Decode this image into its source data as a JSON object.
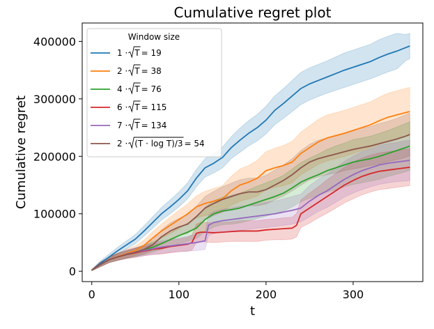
{
  "chart_data": {
    "type": "line",
    "title": "Cumulative regret plot",
    "xlabel": "t",
    "ylabel": "Cumulative regret",
    "xlim": [
      -11,
      380
    ],
    "ylim": [
      -18000,
      432000
    ],
    "xticks": [
      0,
      100,
      200,
      300
    ],
    "yticks": [
      0,
      100000,
      200000,
      300000,
      400000
    ],
    "grid": false,
    "legend": {
      "title": "Window size",
      "placement": "top-left"
    },
    "series": [
      {
        "name": "1·√T = 19",
        "label_parts": [
          "1 · ",
          "T",
          " = 19"
        ],
        "color": "#1f77b4",
        "x": [
          0,
          10,
          20,
          30,
          40,
          50,
          60,
          70,
          80,
          90,
          100,
          110,
          120,
          130,
          140,
          150,
          160,
          170,
          180,
          190,
          200,
          210,
          220,
          230,
          240,
          250,
          260,
          270,
          280,
          290,
          300,
          310,
          320,
          330,
          340,
          350,
          360,
          365
        ],
        "y": [
          2000,
          14000,
          25000,
          36000,
          46000,
          56000,
          70000,
          85000,
          100000,
          112000,
          125000,
          140000,
          162000,
          180000,
          188000,
          198000,
          215000,
          228000,
          240000,
          250000,
          263000,
          280000,
          292000,
          305000,
          318000,
          326000,
          332000,
          338000,
          344000,
          350000,
          355000,
          360000,
          365000,
          372000,
          378000,
          383000,
          389000,
          392000
        ],
        "lower": [
          1000,
          10000,
          20000,
          30000,
          39000,
          48000,
          61000,
          75000,
          89000,
          100000,
          112000,
          126000,
          147000,
          164000,
          171000,
          180000,
          196000,
          207000,
          218000,
          227000,
          239000,
          255000,
          266000,
          278000,
          290000,
          298000,
          304000,
          310000,
          315000,
          320000,
          325000,
          330000,
          335000,
          341000,
          347000,
          352000,
          366000,
          370000
        ],
        "upper": [
          3000,
          18000,
          30000,
          42000,
          53000,
          64000,
          79000,
          95000,
          111000,
          124000,
          138000,
          154000,
          177000,
          196000,
          205000,
          216000,
          234000,
          249000,
          262000,
          273000,
          287000,
          305000,
          318000,
          332000,
          346000,
          354000,
          360000,
          366000,
          373000,
          380000,
          385000,
          390000,
          395000,
          403000,
          409000,
          414000,
          412000,
          414000
        ]
      },
      {
        "name": "2·√T = 38",
        "label_parts": [
          "2 · ",
          "T",
          " = 38"
        ],
        "color": "#ff7f0e",
        "x": [
          0,
          10,
          20,
          30,
          40,
          50,
          60,
          70,
          80,
          90,
          100,
          110,
          120,
          130,
          140,
          150,
          160,
          170,
          180,
          190,
          200,
          210,
          220,
          230,
          240,
          250,
          260,
          270,
          280,
          290,
          300,
          310,
          320,
          330,
          340,
          350,
          360,
          365
        ],
        "y": [
          2000,
          12000,
          20000,
          26000,
          31000,
          36000,
          45000,
          58000,
          70000,
          80000,
          90000,
          100000,
          112000,
          118000,
          122000,
          126000,
          140000,
          150000,
          155000,
          162000,
          175000,
          180000,
          184000,
          190000,
          205000,
          215000,
          225000,
          232000,
          236000,
          240000,
          245000,
          250000,
          255000,
          262000,
          268000,
          272000,
          276000,
          278000
        ],
        "lower": [
          1000,
          8000,
          15000,
          20000,
          24000,
          28000,
          36000,
          47000,
          58000,
          66000,
          74000,
          83000,
          93000,
          97000,
          100000,
          103000,
          115000,
          122000,
          126000,
          131000,
          142000,
          146000,
          149000,
          154000,
          168000,
          177000,
          186000,
          192000,
          196000,
          200000,
          205000,
          210000,
          215000,
          221000,
          226000,
          230000,
          234000,
          236000
        ],
        "upper": [
          3000,
          16000,
          25000,
          32000,
          38000,
          44000,
          54000,
          69000,
          82000,
          94000,
          106000,
          117000,
          131000,
          139000,
          144000,
          149000,
          165000,
          178000,
          184000,
          193000,
          208000,
          214000,
          219000,
          226000,
          242000,
          253000,
          264000,
          272000,
          276000,
          280000,
          285000,
          290000,
          295000,
          303000,
          310000,
          314000,
          318000,
          320000
        ]
      },
      {
        "name": "4·√T = 76",
        "label_parts": [
          "4 · ",
          "T",
          " = 76"
        ],
        "color": "#2ca02c",
        "x": [
          0,
          10,
          20,
          30,
          40,
          50,
          60,
          70,
          80,
          90,
          100,
          110,
          120,
          130,
          140,
          150,
          160,
          170,
          180,
          190,
          200,
          210,
          220,
          230,
          240,
          250,
          260,
          270,
          280,
          290,
          300,
          310,
          320,
          330,
          340,
          350,
          360,
          365
        ],
        "y": [
          2000,
          12000,
          20000,
          25000,
          29000,
          33000,
          37000,
          42000,
          48000,
          55000,
          62000,
          68000,
          75000,
          90000,
          100000,
          105000,
          107000,
          110000,
          115000,
          120000,
          125000,
          130000,
          136000,
          145000,
          155000,
          162000,
          168000,
          175000,
          180000,
          185000,
          190000,
          193000,
          196000,
          200000,
          205000,
          210000,
          215000,
          218000
        ],
        "lower": [
          1000,
          8000,
          15000,
          19000,
          23000,
          26000,
          29000,
          33000,
          38000,
          43000,
          48000,
          52000,
          57000,
          69000,
          77000,
          81000,
          82000,
          84000,
          88000,
          92000,
          96000,
          100000,
          105000,
          112000,
          121000,
          127000,
          132000,
          138000,
          142000,
          147000,
          151000,
          154000,
          157000,
          160000,
          165000,
          169000,
          173000,
          176000
        ],
        "upper": [
          3000,
          16000,
          25000,
          31000,
          35000,
          40000,
          45000,
          51000,
          58000,
          67000,
          76000,
          84000,
          93000,
          111000,
          123000,
          129000,
          132000,
          136000,
          142000,
          148000,
          154000,
          160000,
          167000,
          178000,
          189000,
          197000,
          204000,
          212000,
          218000,
          223000,
          229000,
          232000,
          235000,
          240000,
          245000,
          251000,
          257000,
          260000
        ]
      },
      {
        "name": "6·√T = 115",
        "label_parts": [
          "6 · ",
          "T",
          " = 115"
        ],
        "color": "#d62728",
        "x": [
          0,
          10,
          20,
          30,
          40,
          50,
          60,
          70,
          80,
          90,
          100,
          110,
          115,
          120,
          125,
          130,
          140,
          150,
          160,
          170,
          180,
          190,
          200,
          210,
          220,
          230,
          235,
          240,
          250,
          260,
          270,
          280,
          290,
          300,
          310,
          320,
          330,
          340,
          350,
          360,
          365
        ],
        "y": [
          2000,
          12000,
          20000,
          25000,
          29000,
          32000,
          35000,
          38000,
          40000,
          43000,
          45000,
          47000,
          50000,
          66000,
          68000,
          68000,
          67000,
          68000,
          69000,
          70000,
          70000,
          70000,
          72000,
          73000,
          74000,
          75000,
          80000,
          100000,
          110000,
          120000,
          130000,
          140000,
          150000,
          158000,
          165000,
          170000,
          174000,
          176000,
          178000,
          180000,
          181000
        ],
        "lower": [
          1000,
          8000,
          15000,
          19000,
          22000,
          24000,
          27000,
          29000,
          30000,
          32000,
          34000,
          35000,
          37000,
          50000,
          51000,
          51000,
          50000,
          51000,
          52000,
          52000,
          52000,
          52000,
          54000,
          55000,
          55000,
          56000,
          60000,
          76000,
          84000,
          93000,
          101000,
          110000,
          119000,
          126000,
          133000,
          138000,
          142000,
          144000,
          146000,
          148000,
          149000
        ],
        "upper": [
          3000,
          16000,
          25000,
          31000,
          36000,
          40000,
          43000,
          47000,
          50000,
          54000,
          56000,
          59000,
          63000,
          82000,
          85000,
          85000,
          84000,
          85000,
          86000,
          88000,
          88000,
          88000,
          90000,
          91000,
          93000,
          94000,
          100000,
          124000,
          136000,
          147000,
          159000,
          170000,
          181000,
          190000,
          197000,
          202000,
          206000,
          208000,
          210000,
          212000,
          213000
        ]
      },
      {
        "name": "7·√T = 134",
        "label_parts": [
          "7 · ",
          "T",
          " = 134"
        ],
        "color": "#9467bd",
        "x": [
          0,
          10,
          20,
          30,
          40,
          50,
          60,
          70,
          80,
          90,
          100,
          110,
          120,
          130,
          134,
          140,
          150,
          160,
          170,
          180,
          190,
          200,
          210,
          220,
          230,
          240,
          250,
          260,
          270,
          280,
          290,
          300,
          310,
          320,
          330,
          340,
          350,
          360,
          365
        ],
        "y": [
          2000,
          12000,
          20000,
          25000,
          30000,
          33000,
          36000,
          39000,
          42000,
          44000,
          46000,
          48000,
          50000,
          53000,
          80000,
          85000,
          88000,
          90000,
          92000,
          94000,
          96000,
          98000,
          100000,
          103000,
          106000,
          110000,
          122000,
          132000,
          140000,
          150000,
          160000,
          168000,
          175000,
          180000,
          185000,
          188000,
          190000,
          192000,
          193000
        ],
        "lower": [
          1000,
          8000,
          15000,
          19000,
          23000,
          25000,
          27000,
          29000,
          31000,
          33000,
          34000,
          35000,
          36000,
          38000,
          62000,
          66000,
          68000,
          70000,
          71000,
          73000,
          75000,
          76000,
          78000,
          80000,
          82000,
          86000,
          95000,
          104000,
          111000,
          120000,
          129000,
          136000,
          142000,
          147000,
          151000,
          154000,
          156000,
          157000,
          158000
        ],
        "upper": [
          3000,
          16000,
          25000,
          31000,
          37000,
          41000,
          45000,
          49000,
          53000,
          55000,
          58000,
          61000,
          64000,
          68000,
          98000,
          104000,
          108000,
          110000,
          113000,
          115000,
          117000,
          120000,
          122000,
          126000,
          130000,
          134000,
          149000,
          160000,
          169000,
          180000,
          191000,
          200000,
          208000,
          213000,
          219000,
          222000,
          224000,
          227000,
          228000
        ]
      },
      {
        "name": "2·√((T·log T)/3) = 54",
        "label_parts": [
          "2 · ",
          "(T · log T)/3",
          " = 54"
        ],
        "color": "#8c564b",
        "x": [
          0,
          10,
          20,
          30,
          40,
          50,
          60,
          70,
          80,
          90,
          100,
          110,
          120,
          130,
          140,
          150,
          160,
          170,
          180,
          190,
          200,
          210,
          220,
          230,
          240,
          250,
          260,
          270,
          280,
          290,
          300,
          310,
          320,
          330,
          340,
          350,
          360,
          365
        ],
        "y": [
          2000,
          12000,
          20000,
          25000,
          29000,
          33000,
          38000,
          46000,
          60000,
          70000,
          77000,
          82000,
          95000,
          110000,
          118000,
          125000,
          130000,
          135000,
          138000,
          138000,
          142000,
          150000,
          158000,
          168000,
          180000,
          190000,
          196000,
          200000,
          204000,
          208000,
          212000,
          215000,
          218000,
          222000,
          226000,
          230000,
          235000,
          238000
        ],
        "lower": [
          1000,
          8000,
          15000,
          19000,
          22000,
          26000,
          30000,
          37000,
          48000,
          56000,
          62000,
          66000,
          77000,
          90000,
          97000,
          103000,
          107000,
          111000,
          114000,
          114000,
          117000,
          124000,
          131000,
          140000,
          150000,
          159000,
          164000,
          168000,
          171000,
          175000,
          178000,
          181000,
          184000,
          187000,
          191000,
          194000,
          198000,
          201000
        ],
        "upper": [
          3000,
          16000,
          25000,
          31000,
          36000,
          40000,
          46000,
          55000,
          72000,
          84000,
          92000,
          98000,
          113000,
          130000,
          139000,
          147000,
          153000,
          159000,
          162000,
          162000,
          167000,
          176000,
          185000,
          196000,
          210000,
          221000,
          228000,
          232000,
          237000,
          241000,
          246000,
          249000,
          252000,
          257000,
          261000,
          266000,
          272000,
          275000
        ]
      }
    ]
  }
}
